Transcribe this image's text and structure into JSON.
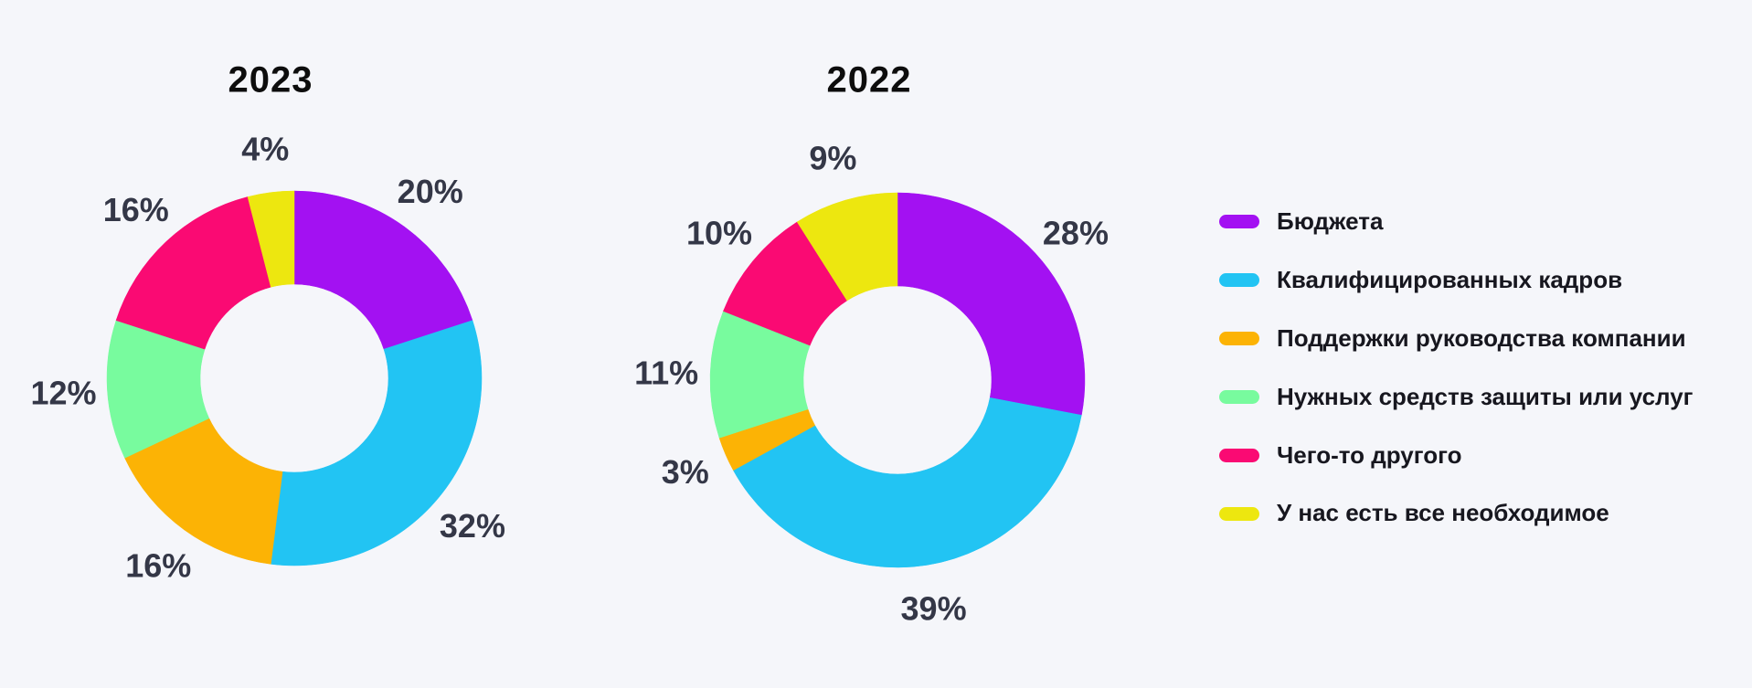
{
  "colors": {
    "background": "#F5F6FA",
    "title_text": "#0D0D0D",
    "label_text": "#343747",
    "legend_text": "#17171F"
  },
  "legend": {
    "items": [
      {
        "label": "Бюджета",
        "color": "#A311F2"
      },
      {
        "label": "Квалифицированных кадров",
        "color": "#22C4F3"
      },
      {
        "label": "Поддержки руководства компании",
        "color": "#FCB305"
      },
      {
        "label": "Нужных средств защиты или услуг",
        "color": "#78FB9E"
      },
      {
        "label": "Чего-то другого",
        "color": "#FA0A73"
      },
      {
        "label": "У нас есть все необходимое",
        "color": "#EDE70F"
      }
    ]
  },
  "chart_data": [
    {
      "type": "pie",
      "subtype": "donut",
      "title": "2023",
      "categories": [
        "Бюджета",
        "Квалифицированных кадров",
        "Поддержки руководства компании",
        "Нужных средств защиты или услуг",
        "Чего-то другого",
        "У нас есть все необходимое"
      ],
      "values": [
        20,
        32,
        16,
        12,
        16,
        4
      ],
      "labels": [
        "20%",
        "32%",
        "16%",
        "12%",
        "16%",
        "4%"
      ],
      "colors": [
        "#A311F2",
        "#22C4F3",
        "#FCB305",
        "#78FB9E",
        "#FA0A73",
        "#EDE70F"
      ],
      "start_angle_deg": 0,
      "direction": "clockwise",
      "legend_position": "right"
    },
    {
      "type": "pie",
      "subtype": "donut",
      "title": "2022",
      "categories": [
        "Бюджета",
        "Квалифицированных кадров",
        "Поддержки руководства компании",
        "Нужных средств защиты или услуг",
        "Чего-то другого",
        "У нас есть все необходимое"
      ],
      "values": [
        28,
        39,
        3,
        11,
        10,
        9
      ],
      "labels": [
        "28%",
        "39%",
        "3%",
        "11%",
        "10%",
        "9%"
      ],
      "colors": [
        "#A311F2",
        "#22C4F3",
        "#FCB305",
        "#78FB9E",
        "#FA0A73",
        "#EDE70F"
      ],
      "start_angle_deg": 0,
      "direction": "clockwise",
      "legend_position": "right"
    }
  ]
}
